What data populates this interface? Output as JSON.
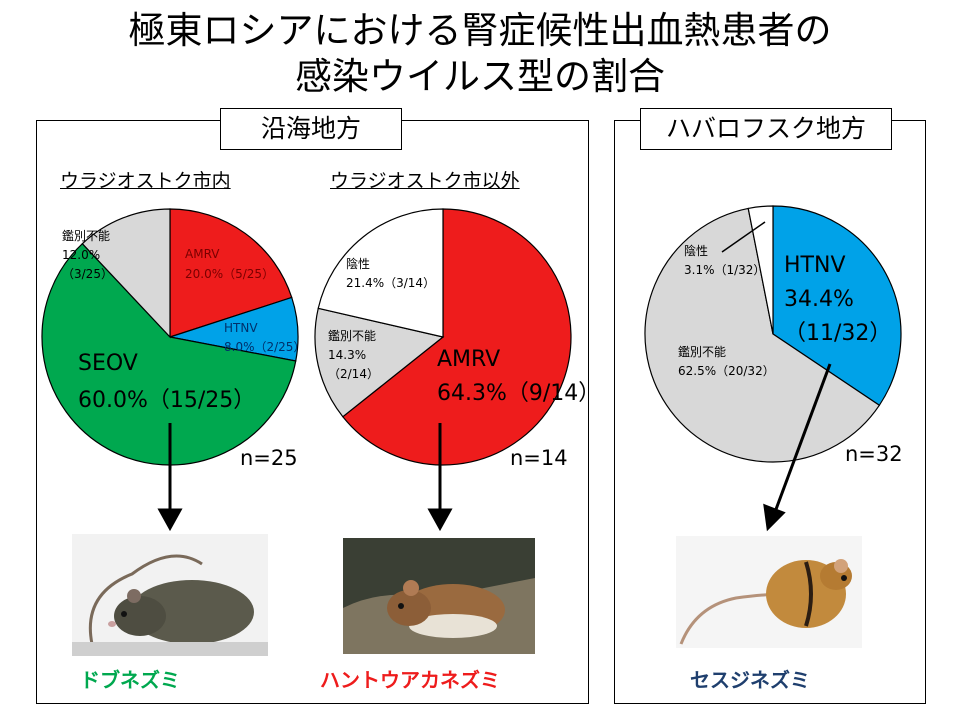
{
  "title": {
    "line1": "極東ロシアにおける腎症候性出血熱患者の",
    "line2": "感染ウイルス型の割合"
  },
  "regions": {
    "coastal": {
      "label": "沿海地方"
    },
    "khabarovsk": {
      "label": "ハバロフスク地方"
    }
  },
  "colors": {
    "SEOV": "#00a84f",
    "AMRV": "#ee1c1c",
    "HTNV": "#00a2e8",
    "unidentified": "#d8d8d8",
    "negative": "#ffffff",
    "seov_text": "#00a84f",
    "amrv_text": "#ee1c1c",
    "htnv_text": "#1f3f6e"
  },
  "chart_data": [
    {
      "type": "pie",
      "title": "ウラジオストク市内",
      "n_label": "n=25",
      "slices": [
        {
          "name": "AMRV",
          "value": 20.0,
          "text": "AMRV",
          "detail": "20.0%（5/25）"
        },
        {
          "name": "HTNV",
          "value": 8.0,
          "text": "HTNV",
          "detail": "8.0%（2/25）"
        },
        {
          "name": "SEOV",
          "value": 60.0,
          "text": "SEOV",
          "detail": "60.0%（15/25）"
        },
        {
          "name": "鑑別不能",
          "value": 12.0,
          "text": "鑑別不能",
          "detail": "12.0%",
          "detail2": "（3/25）"
        }
      ],
      "animal": "ドブネズミ"
    },
    {
      "type": "pie",
      "title": "ウラジオストク市以外",
      "n_label": "n=14",
      "slices": [
        {
          "name": "AMRV",
          "value": 64.3,
          "text": "AMRV",
          "detail": "64.3%（9/14）"
        },
        {
          "name": "鑑別不能",
          "value": 14.3,
          "text": "鑑別不能",
          "detail": "14.3%",
          "detail2": "（2/14）"
        },
        {
          "name": "陰性",
          "value": 21.4,
          "text": "陰性",
          "detail": "21.4%（3/14）"
        }
      ],
      "animal": "ハントウアカネズミ"
    },
    {
      "type": "pie",
      "title": "",
      "n_label": "n=32",
      "slices": [
        {
          "name": "HTNV",
          "value": 34.4,
          "text": "HTNV",
          "detail": "34.4%",
          "detail2": "（11/32）"
        },
        {
          "name": "鑑別不能",
          "value": 62.5,
          "text": "鑑別不能",
          "detail": "62.5%（20/32）"
        },
        {
          "name": "陰性",
          "value": 3.1,
          "text": "陰性",
          "detail": "3.1%（1/32）"
        }
      ],
      "animal": "セスジネズミ"
    }
  ]
}
